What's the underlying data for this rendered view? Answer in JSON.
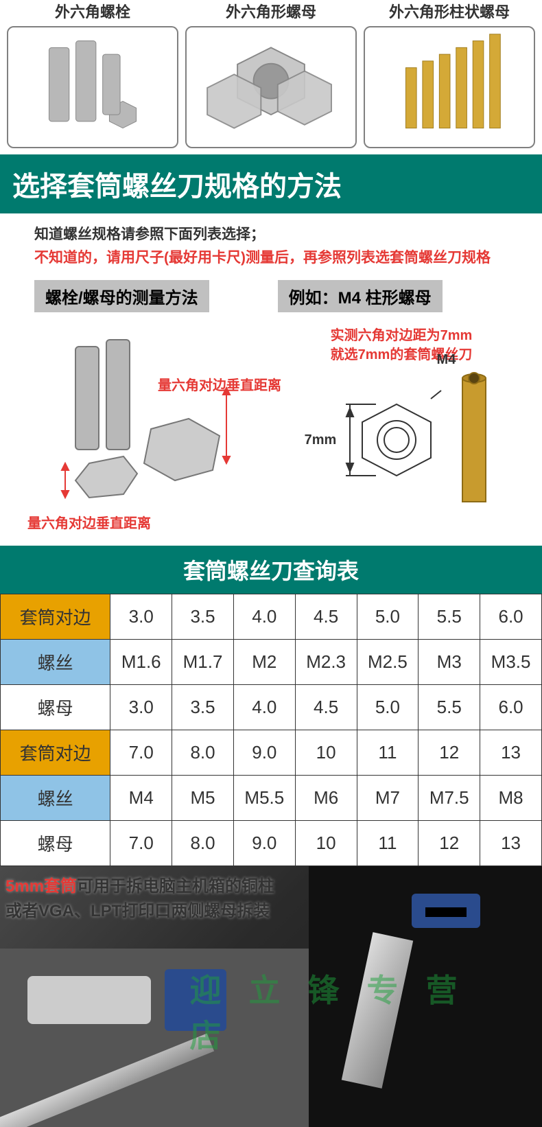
{
  "topRow": [
    {
      "label": "外六角螺栓",
      "iconType": "bolt"
    },
    {
      "label": "外六角形螺母",
      "iconType": "nut"
    },
    {
      "label": "外六角形柱状螺母",
      "iconType": "standoff"
    }
  ],
  "titleBar": "选择套筒螺丝刀规格的方法",
  "instructions": {
    "line1": "知道螺丝规格请参照下面列表选择；",
    "line2": "不知道的，请用尺子(最好用卡尺)测量后，再参照列表选套筒螺丝刀规格"
  },
  "sectionHeads": {
    "left": "螺栓/螺母的测量方法",
    "right": "例如：M4 柱形螺母"
  },
  "measureLeft": {
    "topRed": "量六角对边垂直距离",
    "botRed": "量六角对边垂直距离"
  },
  "measureRight": {
    "redLine1": "实测六角对边距为7mm",
    "redLine2": "就选7mm的套筒螺丝刀",
    "dim": "7mm",
    "m4": "M4"
  },
  "lookupTitle": "套筒螺丝刀查询表",
  "lookup": {
    "headers": {
      "socket": "套筒对边",
      "screw": "螺丝",
      "nut": "螺母"
    },
    "headerColors": {
      "socket": "#e8a100",
      "screw": "#8fc3e6",
      "nut": "#ffffff"
    },
    "blocks": [
      {
        "socket": [
          "3.0",
          "3.5",
          "4.0",
          "4.5",
          "5.0",
          "5.5",
          "6.0"
        ],
        "screw": [
          "M1.6",
          "M1.7",
          "M2",
          "M2.3",
          "M2.5",
          "M3",
          "M3.5"
        ],
        "nut": [
          "3.0",
          "3.5",
          "4.0",
          "4.5",
          "5.0",
          "5.5",
          "6.0"
        ]
      },
      {
        "socket": [
          "7.0",
          "8.0",
          "9.0",
          "10",
          "11",
          "12",
          "13"
        ],
        "screw": [
          "M4",
          "M5",
          "M5.5",
          "M6",
          "M7",
          "M7.5",
          "M8"
        ],
        "nut": [
          "7.0",
          "8.0",
          "9.0",
          "10",
          "11",
          "12",
          "13"
        ]
      }
    ]
  },
  "bottomCaption": {
    "red": "5mm套筒",
    "black1": "可用于拆电脑主机箱的铜柱",
    "black2": "或者VGA、LPT打印口两侧螺母拆装"
  },
  "watermark": "迎立锋专营店",
  "colors": {
    "brandGreen": "#007a6e",
    "headerYellow": "#e8a100",
    "headerBlue": "#8fc3e6",
    "red": "#e53935",
    "grey": "#c0c0c0"
  }
}
